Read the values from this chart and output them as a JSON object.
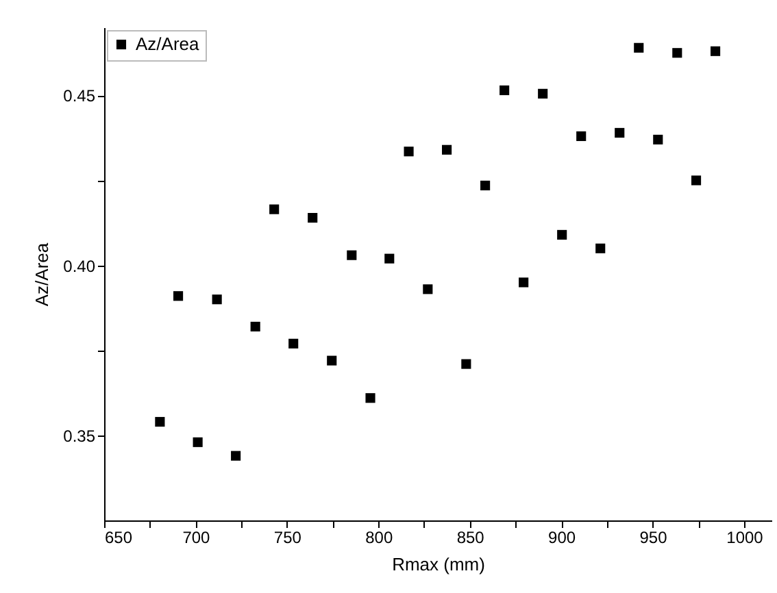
{
  "chart_data": {
    "type": "scatter",
    "xlabel": "Rmax (mm)",
    "ylabel": "Az/Area",
    "legend": "top left",
    "marker": "square",
    "grid": false,
    "xlim": [
      650,
      1015
    ],
    "ylim": [
      0.325,
      0.47
    ],
    "xticks": [
      650,
      {
        "value": 675,
        "label": null
      },
      700,
      {
        "value": 725,
        "label": null
      },
      750,
      {
        "value": 775,
        "label": null
      },
      800,
      {
        "value": 825,
        "label": null
      },
      850,
      {
        "value": 875,
        "label": null
      },
      900,
      {
        "value": 925,
        "label": null
      },
      950,
      {
        "value": 975,
        "label": null
      },
      1000
    ],
    "yticks": [
      {
        "value": 0.35,
        "label": "0.35"
      },
      {
        "value": 0.375,
        "label": null
      },
      {
        "value": 0.4,
        "label": "0.40"
      },
      {
        "value": 0.425,
        "label": null
      },
      {
        "value": 0.45,
        "label": "0.45"
      }
    ],
    "series": [
      {
        "name": "Az/Area",
        "color": "#000000",
        "x": [
          680.5,
          690.5,
          701.2,
          711.7,
          722,
          732.7,
          743,
          753.5,
          764,
          774.5,
          785.4,
          795.6,
          806,
          816.6,
          827,
          837.4,
          848,
          858.4,
          868.9,
          879.4,
          889.9,
          900.4,
          910.9,
          921.4,
          931.9,
          942.4,
          952.9,
          963.4,
          973.8,
          984.3
        ],
        "values": [
          0.354,
          0.391,
          0.348,
          0.39,
          0.344,
          0.382,
          0.4165,
          0.377,
          0.414,
          0.372,
          0.403,
          0.361,
          0.402,
          0.4335,
          0.393,
          0.434,
          0.371,
          0.4235,
          0.4515,
          0.395,
          0.4505,
          0.409,
          0.438,
          0.405,
          0.439,
          0.464,
          0.437,
          0.4625,
          0.425,
          0.463
        ]
      }
    ]
  }
}
